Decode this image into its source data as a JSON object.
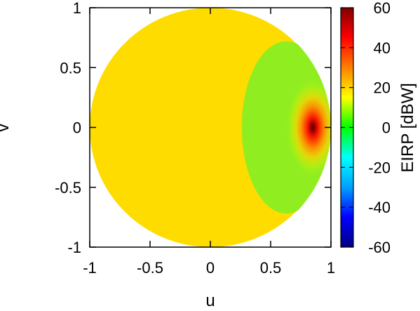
{
  "chart_data": {
    "type": "heatmap",
    "projection": "u-v direction-cosine space (visible region |u|^2+|v|^2 <= 1)",
    "xlabel": "u",
    "ylabel": "v",
    "xlim": [
      -1,
      1
    ],
    "ylim": [
      -1,
      1
    ],
    "x_ticks": [
      -1,
      -0.5,
      0,
      0.5,
      1
    ],
    "y_ticks": [
      -1,
      -0.5,
      0,
      0.5,
      1
    ],
    "x_tick_labels": [
      "-1",
      "-0.5",
      "0",
      "0.5",
      "1"
    ],
    "y_tick_labels": [
      "-1",
      "-0.5",
      "0",
      "0.5",
      "1"
    ],
    "grid": false,
    "colorbar": {
      "label": "EIRP [dBW]",
      "range": [
        -60,
        60
      ],
      "ticks": [
        -60,
        -40,
        -20,
        0,
        20,
        40,
        60
      ],
      "tick_labels": [
        "-60",
        "-40",
        "-20",
        "0",
        "20",
        "40",
        "60"
      ],
      "colormap": [
        "#000080",
        "#0000ff",
        "#00a0ff",
        "#00ffff",
        "#00ff00",
        "#ffff00",
        "#ff8000",
        "#ff0000",
        "#800000"
      ]
    },
    "regions": [
      {
        "name": "background",
        "value": 20,
        "color": "#ffdc00"
      },
      {
        "name": "coverage",
        "center_u": 0.63,
        "center_v": 0.0,
        "semi_u": 0.37,
        "semi_v": 0.72,
        "edge_value": 5,
        "color": "#90ee20"
      }
    ],
    "peak": {
      "u": 0.85,
      "v": 0.0,
      "value": 58
    }
  }
}
